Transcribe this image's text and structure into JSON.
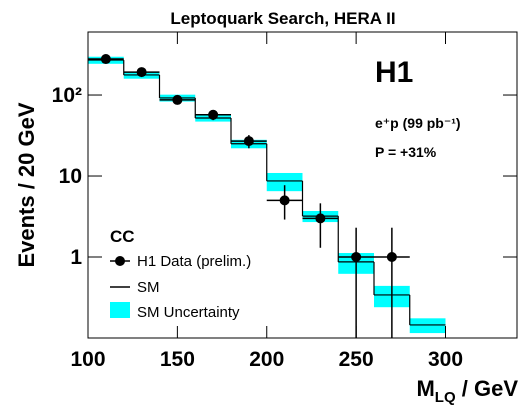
{
  "chart_data": {
    "type": "histogram",
    "title": "Leptoquark Search, HERA II",
    "x_label": [
      "M",
      "LQ",
      " / GeV"
    ],
    "y_label": "Events / 20 GeV",
    "log_y": true,
    "xlim": [
      100,
      340
    ],
    "ylim": [
      0.1,
      600
    ],
    "xticks": [
      100,
      150,
      200,
      250,
      300
    ],
    "yticks": [
      1,
      10,
      {
        "value": 100,
        "label": "10²"
      }
    ],
    "bins": [
      100,
      120,
      140,
      160,
      180,
      200,
      220,
      240,
      260,
      280,
      300
    ],
    "series": [
      {
        "name": "SM",
        "color": "#000000",
        "values": [
          270,
          177,
          92,
          52,
          25,
          8.7,
          3.2,
          0.87,
          0.34,
          0.145
        ]
      }
    ],
    "band": {
      "name": "SM Uncertainty",
      "color": "#00ffff",
      "errors": [
        27,
        18,
        9,
        5,
        3,
        2.2,
        0.5,
        0.25,
        0.1,
        0.03
      ]
    },
    "data": {
      "name": "H1 Data (prelim.)",
      "color": "#000000",
      "x": [
        110,
        130,
        150,
        170,
        190,
        210,
        230,
        250,
        270
      ],
      "values": [
        278,
        192,
        87,
        57,
        27,
        5,
        3,
        1,
        1
      ],
      "err_low": [
        17,
        14,
        9,
        8,
        5,
        2.1,
        1.7,
        0.9,
        0.9
      ],
      "err_high": [
        17,
        14,
        9,
        8,
        5,
        2.7,
        1.6,
        1.3,
        1.3
      ]
    },
    "legend_title": "CC",
    "annotations": [
      "H1",
      "e⁺p (99 pb⁻¹)",
      "P = +31%"
    ]
  }
}
